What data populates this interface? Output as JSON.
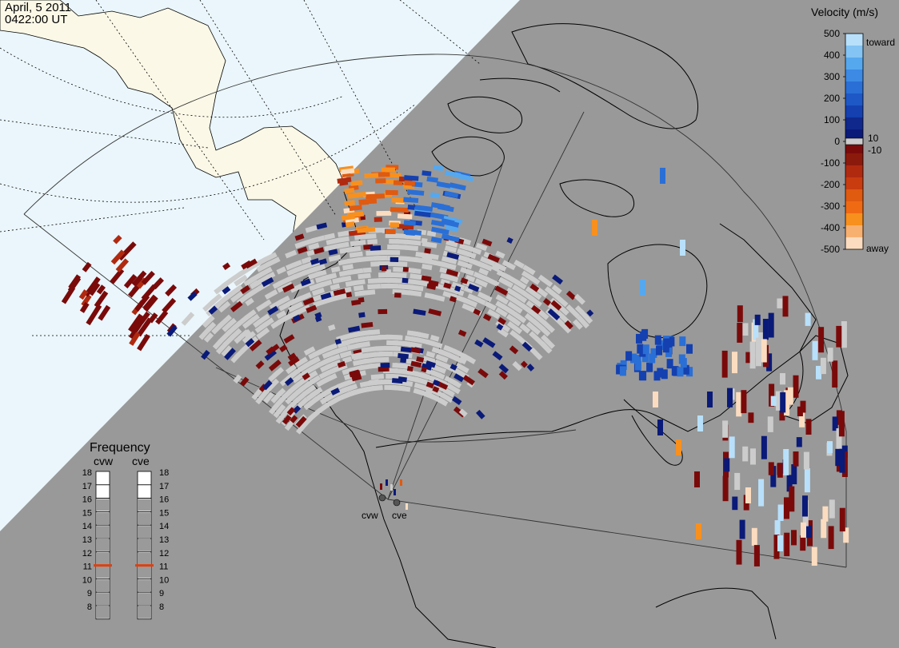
{
  "header": {
    "date": "April, 5 2011",
    "time": "0422:00 UT"
  },
  "velocity_scale": {
    "title": "Velocity (m/s)",
    "ticks": [
      "500",
      "400",
      "300",
      "200",
      "100",
      "0",
      "-100",
      "-200",
      "-300",
      "-400",
      "-500"
    ],
    "inner_labels": {
      "pos": "10",
      "neg": "-10"
    },
    "end_labels": {
      "toward": "toward",
      "away": "away"
    }
  },
  "frequency_panel": {
    "title": "Frequency",
    "radars": [
      "cvw",
      "cve"
    ],
    "ticks": [
      "18",
      "17",
      "16",
      "15",
      "14",
      "13",
      "12",
      "11",
      "10",
      "9",
      "8"
    ],
    "selected_mhz": 11
  },
  "radar_sites": {
    "west": "cvw",
    "east": "cve"
  },
  "colors": {
    "ocean_day": "#eaf6fb",
    "land_day": "#fbf8e7",
    "night": "#999999",
    "ground_scatter": "#cccccc",
    "toward": [
      "#0a1a78",
      "#1440b0",
      "#2a6fd6",
      "#56a8ee",
      "#b8e0fb"
    ],
    "away": [
      "#7a0a0a",
      "#b02a10",
      "#e05a10",
      "#f8901e",
      "#fbdcc0"
    ],
    "marker": "#e04010"
  }
}
